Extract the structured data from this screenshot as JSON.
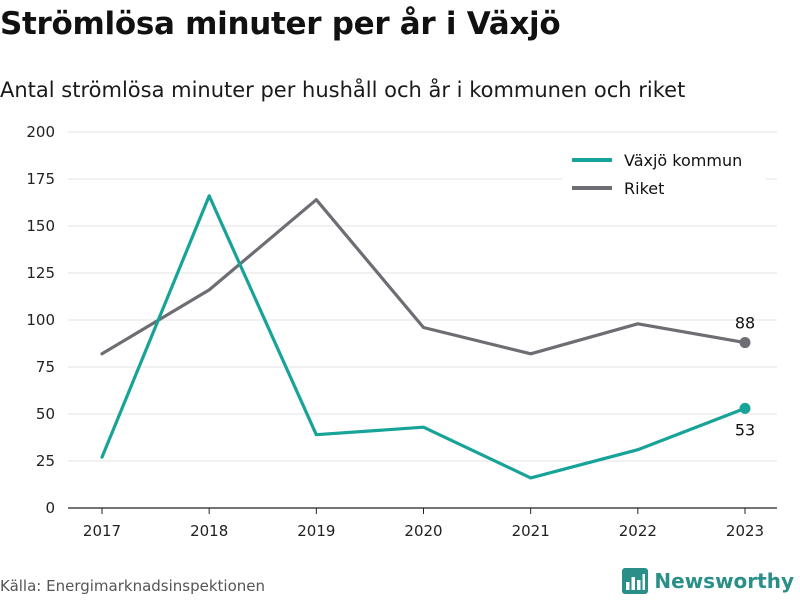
{
  "title": "Strömlösa minuter per år i Växjö",
  "subtitle": "Antal strömlösa minuter per hushåll och år i kommunen och riket",
  "source": "Källa: Energimarknadsinspektionen",
  "brand": {
    "name": "Newsworthy",
    "icon": "newsworthy-logo-icon",
    "color": "#2a8f89"
  },
  "chart_data": {
    "type": "line",
    "x": [
      "2017",
      "2018",
      "2019",
      "2020",
      "2021",
      "2022",
      "2023"
    ],
    "ylim": [
      0,
      200
    ],
    "yticks": [
      0,
      25,
      50,
      75,
      100,
      125,
      150,
      175,
      200
    ],
    "grid": true,
    "legend": "top-right",
    "series": [
      {
        "name": "Växjö kommun",
        "color": "#17a398",
        "values": [
          27,
          166,
          39,
          43,
          16,
          31,
          53
        ],
        "end_label": "53"
      },
      {
        "name": "Riket",
        "color": "#6d6d73",
        "values": [
          82,
          116,
          164,
          96,
          82,
          98,
          88
        ],
        "end_label": "88"
      }
    ]
  }
}
